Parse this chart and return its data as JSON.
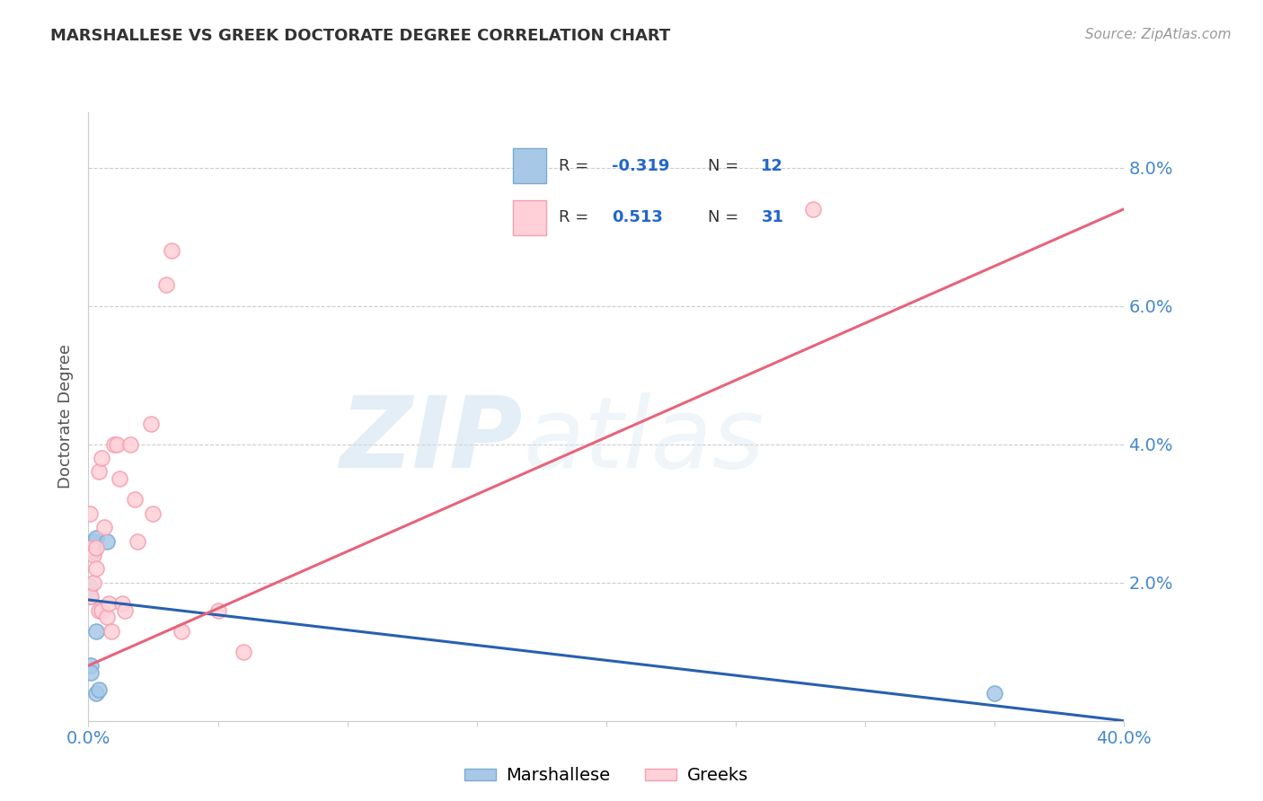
{
  "title": "MARSHALLESE VS GREEK DOCTORATE DEGREE CORRELATION CHART",
  "source": "Source: ZipAtlas.com",
  "ylabel": "Doctorate Degree",
  "xlim": [
    0.0,
    0.4
  ],
  "ylim": [
    0.0,
    0.088
  ],
  "xticks": [
    0.0,
    0.05,
    0.1,
    0.15,
    0.2,
    0.25,
    0.3,
    0.35,
    0.4
  ],
  "yticks": [
    0.0,
    0.02,
    0.04,
    0.06,
    0.08
  ],
  "xtick_labels_show": [
    "0.0%",
    "40.0%"
  ],
  "ytick_labels_right": [
    "",
    "2.0%",
    "4.0%",
    "6.0%",
    "8.0%"
  ],
  "blue_scatter_x": [
    0.0005,
    0.0005,
    0.001,
    0.001,
    0.002,
    0.002,
    0.003,
    0.003,
    0.003,
    0.004,
    0.007,
    0.35
  ],
  "blue_scatter_y": [
    0.0195,
    0.018,
    0.008,
    0.007,
    0.026,
    0.0245,
    0.0265,
    0.013,
    0.004,
    0.0045,
    0.026,
    0.004
  ],
  "pink_scatter_x": [
    0.0005,
    0.001,
    0.001,
    0.002,
    0.002,
    0.003,
    0.003,
    0.004,
    0.004,
    0.005,
    0.005,
    0.006,
    0.007,
    0.008,
    0.009,
    0.01,
    0.011,
    0.012,
    0.013,
    0.014,
    0.016,
    0.018,
    0.019,
    0.024,
    0.025,
    0.03,
    0.032,
    0.036,
    0.05,
    0.06,
    0.28
  ],
  "pink_scatter_y": [
    0.03,
    0.025,
    0.018,
    0.024,
    0.02,
    0.025,
    0.022,
    0.036,
    0.016,
    0.016,
    0.038,
    0.028,
    0.015,
    0.017,
    0.013,
    0.04,
    0.04,
    0.035,
    0.017,
    0.016,
    0.04,
    0.032,
    0.026,
    0.043,
    0.03,
    0.063,
    0.068,
    0.013,
    0.016,
    0.01,
    0.074
  ],
  "blue_line_intercept": 0.0175,
  "blue_line_slope": -0.0437,
  "pink_line_intercept": 0.008,
  "pink_line_slope": 0.165,
  "blue_color_fill": "#a8c8e8",
  "blue_color_edge": "#7aabd4",
  "pink_color_fill": "#ffd0d8",
  "pink_color_edge": "#f4a0b0",
  "blue_line_color": "#2860ae",
  "pink_line_color": "#e8637a",
  "legend_blue_label": "Marshallese",
  "legend_pink_label": "Greeks",
  "legend_blue_R": "-0.319",
  "legend_blue_N": "12",
  "legend_pink_R": "0.513",
  "legend_pink_N": "31",
  "watermark_zip": "ZIP",
  "watermark_atlas": "atlas",
  "background_color": "#ffffff",
  "grid_color": "#cccccc",
  "title_color": "#333333",
  "source_color": "#999999",
  "tick_color": "#4488cc",
  "ylabel_color": "#555555"
}
